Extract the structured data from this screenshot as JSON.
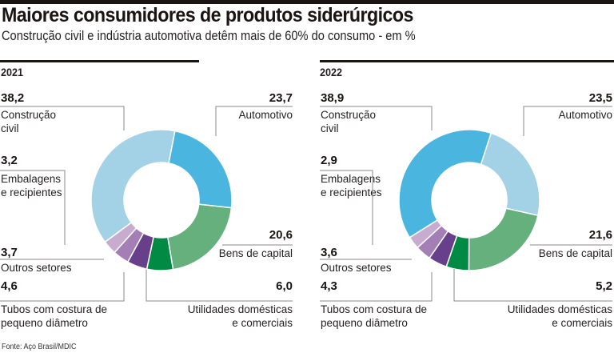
{
  "title": "Maiores consumidores de produtos siderúrgicos",
  "subtitle": "Construção civil e indústria automotiva detêm mais de 60% do consumo - em %",
  "source": "Fonte: Aço Brasil/MDIC",
  "chart_data": [
    {
      "type": "pie",
      "subtype": "donut",
      "title": "2021",
      "unit": "%",
      "order": "clockwise from top",
      "slices": [
        {
          "name": "Automotivo",
          "label_lines": [
            "Automotivo"
          ],
          "value": 23.7,
          "value_label": "23,7",
          "color": "#4ab6e0"
        },
        {
          "name": "Bens de capital",
          "label_lines": [
            "Bens de capital"
          ],
          "value": 20.6,
          "value_label": "20,6",
          "color": "#66b07e"
        },
        {
          "name": "Utilidades domésticas e comerciais",
          "label_lines": [
            "Utilidades domésticas",
            "e comerciais"
          ],
          "value": 6.0,
          "value_label": "6,0",
          "color": "#008a44"
        },
        {
          "name": "Tubos com costura de pequeno diâmetro",
          "label_lines": [
            "Tubos com costura de",
            "pequeno diâmetro"
          ],
          "value": 4.6,
          "value_label": "4,6",
          "color": "#673f8a"
        },
        {
          "name": "Outros setores",
          "label_lines": [
            "Outros setores"
          ],
          "value": 3.7,
          "value_label": "3,7",
          "color": "#a47fb6"
        },
        {
          "name": "Embalagens e recipientes",
          "label_lines": [
            "Embalagens",
            "e recipientes"
          ],
          "value": 3.2,
          "value_label": "3,2",
          "color": "#c8acd0"
        },
        {
          "name": "Construção civil",
          "label_lines": [
            "Construção",
            "civil"
          ],
          "value": 38.2,
          "value_label": "38,2",
          "color": "#a3d1e6"
        }
      ]
    },
    {
      "type": "pie",
      "subtype": "donut",
      "title": "2022",
      "unit": "%",
      "order": "clockwise from top",
      "slices": [
        {
          "name": "Automotivo",
          "label_lines": [
            "Automotivo"
          ],
          "value": 23.5,
          "value_label": "23,5",
          "color": "#a3d1e6"
        },
        {
          "name": "Bens de capital",
          "label_lines": [
            "Bens de capital"
          ],
          "value": 21.6,
          "value_label": "21,6",
          "color": "#66b07e"
        },
        {
          "name": "Utilidades domésticas e comerciais",
          "label_lines": [
            "Utilidades domésticas",
            "e comerciais"
          ],
          "value": 5.2,
          "value_label": "5,2",
          "color": "#008a44"
        },
        {
          "name": "Tubos com costura de pequeno diâmetro",
          "label_lines": [
            "Tubos com costura de",
            "pequeno diâmetro"
          ],
          "value": 4.3,
          "value_label": "4,3",
          "color": "#673f8a"
        },
        {
          "name": "Outros setores",
          "label_lines": [
            "Outros setores"
          ],
          "value": 3.6,
          "value_label": "3,6",
          "color": "#a47fb6"
        },
        {
          "name": "Embalagens e recipientes",
          "label_lines": [
            "Embalagens",
            "e recipientes"
          ],
          "value": 2.9,
          "value_label": "2,9",
          "color": "#c8acd0"
        },
        {
          "name": "Construção civil",
          "label_lines": [
            "Construção",
            "civil"
          ],
          "value": 38.9,
          "value_label": "38,9",
          "color": "#4ab6e0"
        }
      ]
    }
  ]
}
